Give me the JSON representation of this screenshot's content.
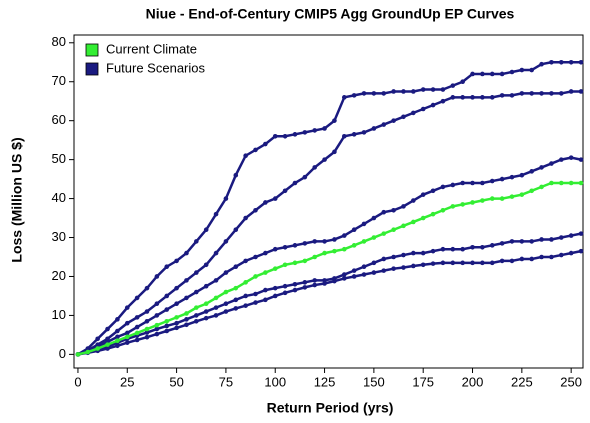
{
  "chart_data": {
    "type": "line",
    "title": "Niue - End-of-Century CMIP5 Agg GroundUp EP Curves",
    "x_label": "Return Period (yrs)",
    "y_label": "Loss (Million US $)",
    "x": [
      0,
      5,
      10,
      15,
      20,
      25,
      30,
      35,
      40,
      45,
      50,
      55,
      60,
      65,
      70,
      75,
      80,
      85,
      90,
      95,
      100,
      105,
      110,
      115,
      120,
      125,
      130,
      135,
      140,
      145,
      150,
      155,
      160,
      165,
      170,
      175,
      180,
      185,
      190,
      195,
      200,
      205,
      210,
      215,
      220,
      225,
      230,
      235,
      240,
      245,
      250,
      255
    ],
    "xlim": [
      -2,
      256
    ],
    "ylim": [
      -3.5,
      82
    ],
    "xticks": [
      0,
      25,
      50,
      75,
      100,
      125,
      150,
      175,
      200,
      225,
      250
    ],
    "yticks": [
      0,
      10,
      20,
      30,
      40,
      50,
      60,
      70,
      80
    ],
    "legend": "upper left",
    "series": [
      {
        "name": "Current Climate",
        "color": "#33ee33",
        "values": [
          0,
          0.6,
          1.5,
          2.5,
          3.5,
          4.5,
          5.5,
          6.5,
          7.5,
          8.5,
          9.5,
          10.5,
          12,
          13,
          14.5,
          16,
          17,
          18.5,
          20,
          21,
          22,
          23,
          23.5,
          24,
          25,
          26,
          26.5,
          27,
          28,
          29,
          30,
          31,
          32,
          33,
          34,
          35,
          36,
          37,
          38,
          38.5,
          39,
          39.5,
          40,
          40,
          40.5,
          41,
          42,
          43,
          44,
          44,
          44,
          44
        ]
      },
      {
        "name": "Future Scenarios",
        "color": "#1a1a80",
        "values": [
          [
            0,
            1.5,
            4,
            6.5,
            9,
            12,
            14.5,
            17,
            20,
            22.5,
            24,
            26,
            29,
            32,
            36,
            40,
            46,
            51,
            52.5,
            54,
            56,
            56,
            56.5,
            57,
            57.5,
            58,
            60,
            66,
            66.5,
            67,
            67,
            67,
            67.5,
            67.5,
            67.5,
            68,
            68,
            68,
            69,
            70,
            72,
            72,
            72,
            72,
            72.5,
            73,
            73,
            74.5,
            75,
            75,
            75,
            75
          ],
          [
            0,
            1,
            2.5,
            4,
            6,
            8,
            9.5,
            11,
            13,
            15,
            17,
            19,
            21,
            23,
            26,
            29,
            32,
            35,
            37,
            39,
            40,
            42,
            44,
            45.5,
            48,
            50,
            52,
            56,
            56.5,
            57,
            58,
            59,
            60,
            61,
            62,
            63,
            64,
            65,
            66,
            66,
            66,
            66,
            66,
            66.5,
            66.5,
            67,
            67,
            67,
            67,
            67,
            67.5,
            67.5
          ],
          [
            0,
            0.8,
            2,
            3.2,
            4.5,
            5.5,
            7,
            8.5,
            10,
            11.5,
            13,
            14.5,
            16,
            17.5,
            19,
            21,
            22.5,
            24,
            25,
            26,
            27,
            27.5,
            28,
            28.5,
            29,
            29,
            29.5,
            30.5,
            32,
            33.5,
            35,
            36.5,
            37,
            38,
            39.5,
            41,
            42,
            43,
            43.5,
            44,
            44,
            44,
            44.5,
            45,
            45.5,
            46,
            47,
            48,
            49,
            50,
            50.5,
            50
          ],
          [
            0,
            0.5,
            1.2,
            2,
            3,
            4,
            4.8,
            5.6,
            6.5,
            7.3,
            8,
            9,
            10,
            11,
            12,
            13,
            14,
            15,
            15.5,
            16.5,
            17,
            17.5,
            18,
            18.5,
            19,
            19,
            19.5,
            20.5,
            21.5,
            22.5,
            23.5,
            24.5,
            25,
            25.5,
            26,
            26,
            26.5,
            27,
            27,
            27,
            27.5,
            27.5,
            28,
            28.5,
            29,
            29,
            29,
            29.5,
            29.5,
            30,
            30.5,
            31
          ],
          [
            0,
            0.4,
            0.9,
            1.5,
            2.2,
            3,
            3.7,
            4.4,
            5.2,
            6,
            6.8,
            7.6,
            8.5,
            9.3,
            10,
            11,
            11.8,
            12.5,
            13.3,
            14,
            15,
            15.8,
            16.5,
            17.2,
            17.8,
            18.2,
            18.8,
            19.5,
            20,
            20.5,
            21,
            21.5,
            22,
            22.3,
            22.7,
            23,
            23.3,
            23.5,
            23.5,
            23.5,
            23.5,
            23.5,
            23.5,
            24,
            24,
            24.5,
            24.5,
            25,
            25,
            25.5,
            26,
            26.5
          ]
        ]
      }
    ]
  }
}
